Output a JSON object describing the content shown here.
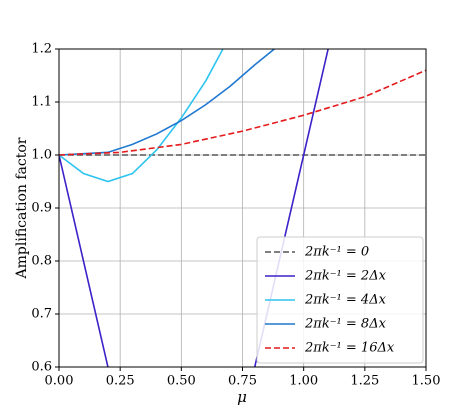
{
  "chart_data": {
    "type": "line",
    "xlabel": "μ",
    "ylabel": "Amplification factor",
    "xlim": [
      0,
      1.5
    ],
    "ylim": [
      0.6,
      1.2
    ],
    "xticks": [
      {
        "value": 0,
        "label": "0.00"
      },
      {
        "value": 0.25,
        "label": "0.25"
      },
      {
        "value": 0.5,
        "label": "0.50"
      },
      {
        "value": 0.75,
        "label": "0.75"
      },
      {
        "value": 1,
        "label": "1.00"
      },
      {
        "value": 1.25,
        "label": "1.25"
      },
      {
        "value": 1.5,
        "label": "1.50"
      }
    ],
    "yticks": [
      0.6,
      0.7,
      0.8,
      0.9,
      {
        "value": 1,
        "label": "1.0"
      },
      1.1,
      1.2
    ],
    "grid": true,
    "legend": "lower right",
    "series": [
      {
        "name": "2πk⁻¹ = 0",
        "color": "#555555",
        "dashed": true,
        "x": [
          0,
          1.5
        ],
        "values": [
          1,
          1
        ]
      },
      {
        "name": "2πk⁻¹ = 2Δx",
        "color": "#3a22c8",
        "dashed": false,
        "x": [
          0,
          0.2,
          0.5,
          0.8,
          1.1
        ],
        "values": [
          1,
          0.6,
          null,
          0.6,
          1.2
        ]
      },
      {
        "name": "2πk⁻¹ = 4Δx",
        "color": "#2ec4ef",
        "dashed": false,
        "x": [
          0,
          0.1,
          0.2,
          0.3,
          0.4,
          0.5,
          0.6,
          0.67
        ],
        "values": [
          1,
          0.965,
          0.95,
          0.965,
          1.01,
          1.07,
          1.14,
          1.2
        ]
      },
      {
        "name": "2πk⁻¹ = 8Δx",
        "color": "#1f78d1",
        "dashed": false,
        "x": [
          0,
          0.2,
          0.3,
          0.4,
          0.5,
          0.6,
          0.7,
          0.8,
          0.88
        ],
        "values": [
          1,
          1.005,
          1.02,
          1.04,
          1.065,
          1.095,
          1.13,
          1.17,
          1.2
        ]
      },
      {
        "name": "2πk⁻¹ = 16Δx",
        "color": "#e41a1c",
        "dashed": true,
        "x": [
          0,
          0.25,
          0.5,
          0.75,
          1,
          1.25,
          1.5
        ],
        "values": [
          1,
          1.005,
          1.02,
          1.045,
          1.075,
          1.11,
          1.16
        ]
      }
    ]
  }
}
